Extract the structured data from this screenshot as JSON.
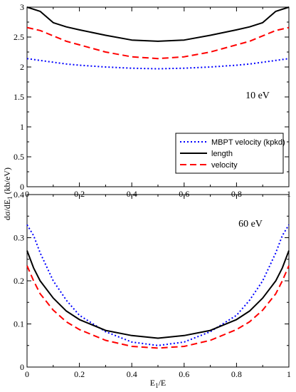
{
  "figure": {
    "ylabel_main": "dσ/dE",
    "ylabel_sub": "1",
    "ylabel_tail": " (kb/eV)",
    "xlabel_main": "E",
    "xlabel_sub": "1",
    "xlabel_tail": "/E"
  },
  "chart_data": [
    {
      "type": "line",
      "annotation": "10 eV",
      "xlim": [
        0,
        1
      ],
      "ylim": [
        0,
        3
      ],
      "xticks": [
        "0",
        "0.2",
        "0.4",
        "0.6",
        "0.8",
        "1"
      ],
      "yticks": [
        "0",
        "0.5",
        "1",
        "1.5",
        "2",
        "2.5",
        "3"
      ],
      "ytick_values": [
        0,
        0.5,
        1,
        1.5,
        2,
        2.5,
        3
      ],
      "legend": "right",
      "x": [
        0,
        0.05,
        0.1,
        0.15,
        0.2,
        0.3,
        0.4,
        0.5,
        0.6,
        0.7,
        0.8,
        0.85,
        0.9,
        0.95,
        1
      ],
      "series": [
        {
          "name": "MBPT velocity (kpkd)",
          "color": "#0000ff",
          "style": "dotted",
          "values": [
            2.14,
            2.11,
            2.08,
            2.05,
            2.03,
            2.0,
            1.98,
            1.97,
            1.98,
            2.0,
            2.03,
            2.05,
            2.08,
            2.11,
            2.14
          ]
        },
        {
          "name": "length",
          "color": "#000000",
          "style": "solid",
          "values": [
            3.0,
            2.93,
            2.74,
            2.67,
            2.62,
            2.53,
            2.45,
            2.43,
            2.45,
            2.53,
            2.62,
            2.67,
            2.74,
            2.93,
            3.0
          ]
        },
        {
          "name": "velocity",
          "color": "#ff0000",
          "style": "dashed",
          "values": [
            2.66,
            2.61,
            2.52,
            2.43,
            2.37,
            2.25,
            2.17,
            2.14,
            2.17,
            2.25,
            2.37,
            2.43,
            2.52,
            2.61,
            2.66
          ]
        }
      ]
    },
    {
      "type": "line",
      "annotation": "60 eV",
      "xlim": [
        0,
        1
      ],
      "ylim": [
        0,
        0.4
      ],
      "xticks": [
        "0",
        "0.2",
        "0.4",
        "0.6",
        "0.8",
        "1"
      ],
      "yticks": [
        "0",
        "0.1",
        "0.2",
        "0.3",
        "0.4"
      ],
      "ytick_values": [
        0,
        0.1,
        0.2,
        0.3,
        0.4
      ],
      "x": [
        0,
        0.025,
        0.05,
        0.1,
        0.15,
        0.2,
        0.3,
        0.4,
        0.5,
        0.6,
        0.7,
        0.8,
        0.85,
        0.9,
        0.95,
        0.975,
        1
      ],
      "series": [
        {
          "name": "MBPT velocity (kpkd)",
          "color": "#0000ff",
          "style": "dotted",
          "values": [
            0.33,
            0.305,
            0.265,
            0.2,
            0.155,
            0.12,
            0.082,
            0.058,
            0.05,
            0.058,
            0.082,
            0.12,
            0.155,
            0.2,
            0.265,
            0.305,
            0.33
          ]
        },
        {
          "name": "length",
          "color": "#000000",
          "style": "solid",
          "values": [
            0.27,
            0.23,
            0.2,
            0.16,
            0.13,
            0.11,
            0.085,
            0.073,
            0.067,
            0.073,
            0.085,
            0.11,
            0.13,
            0.16,
            0.2,
            0.23,
            0.27
          ]
        },
        {
          "name": "velocity",
          "color": "#ff0000",
          "style": "dashed",
          "values": [
            0.235,
            0.2,
            0.17,
            0.132,
            0.105,
            0.087,
            0.062,
            0.048,
            0.044,
            0.048,
            0.062,
            0.087,
            0.105,
            0.132,
            0.17,
            0.2,
            0.235
          ]
        }
      ]
    }
  ]
}
